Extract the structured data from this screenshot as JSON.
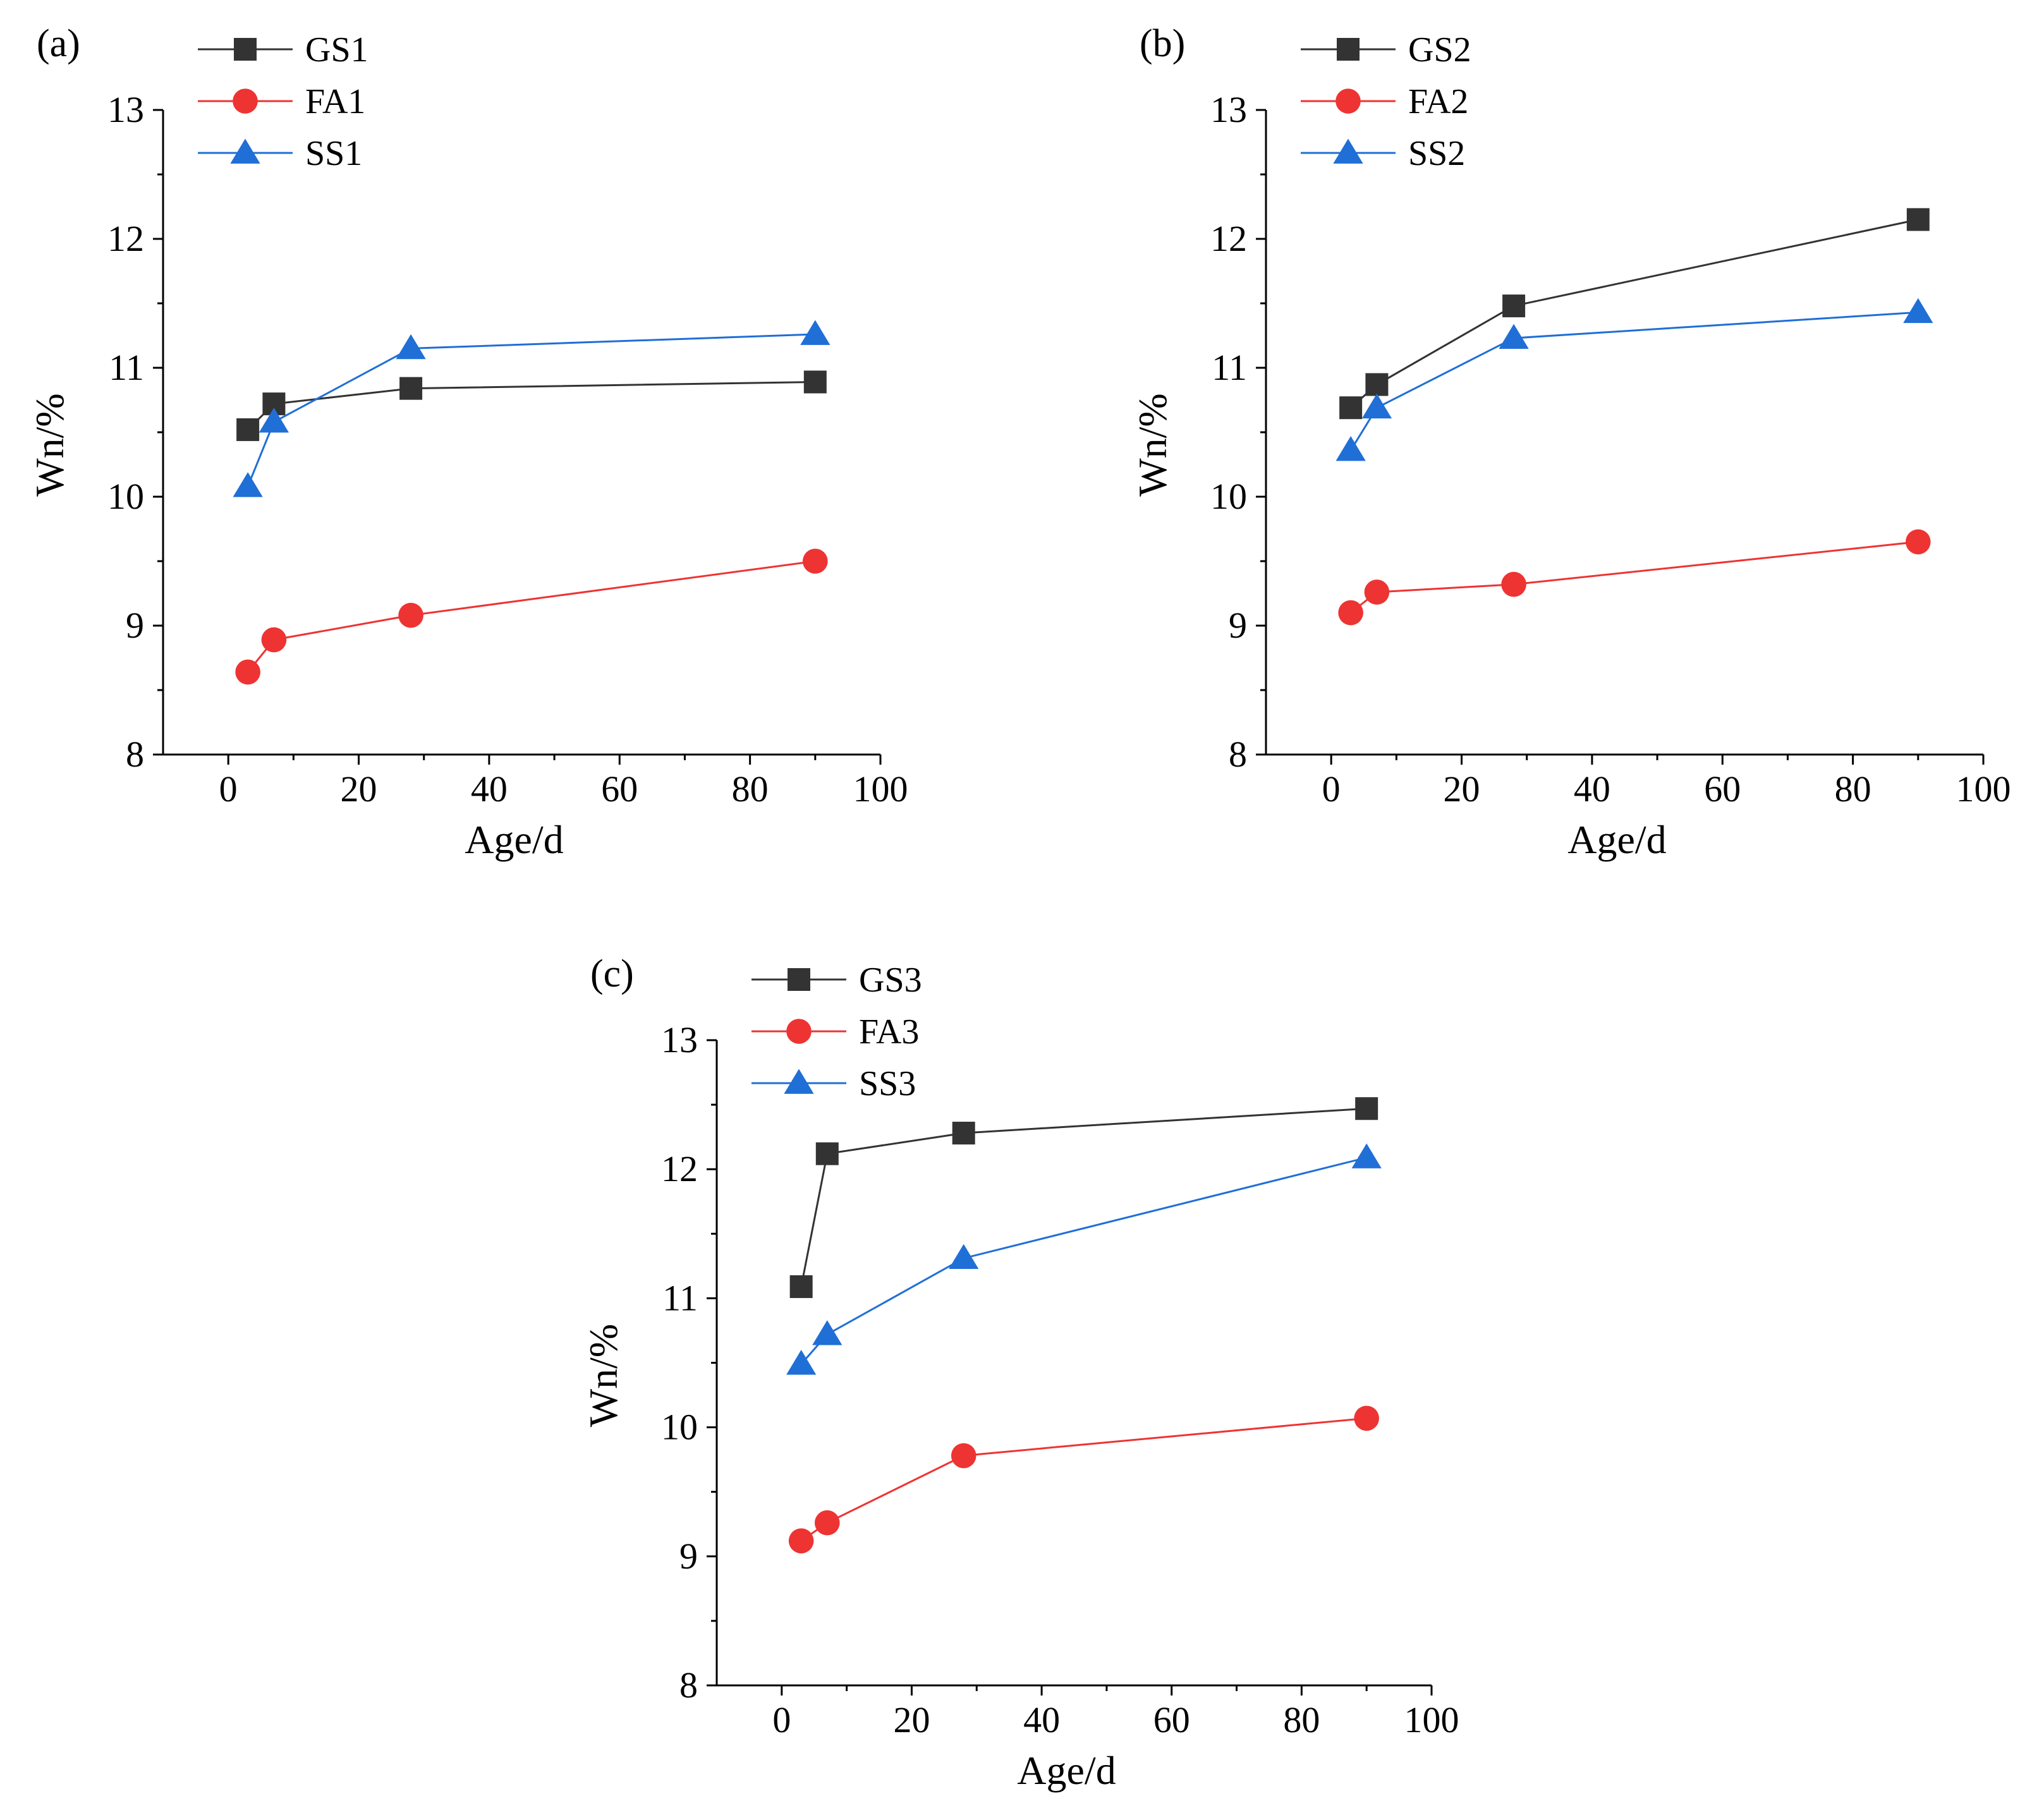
{
  "colors": {
    "GS": "#333333",
    "FA": "#ee3333",
    "SS": "#1f6fd6",
    "axis": "#000000"
  },
  "chart_data": [
    {
      "id": "a",
      "type": "line",
      "panel_label": "(a)",
      "xlabel": "Age/d",
      "ylabel": "Wn/%",
      "xlim": [
        -10,
        100
      ],
      "ylim": [
        8,
        13
      ],
      "xticks": [
        0,
        20,
        40,
        60,
        80,
        100
      ],
      "yticks": [
        8,
        9,
        10,
        11,
        12,
        13
      ],
      "legend_position": "top-left",
      "series": [
        {
          "name": "GS1",
          "marker": "square",
          "color_key": "GS",
          "x": [
            3,
            7,
            28,
            90
          ],
          "y": [
            10.52,
            10.72,
            10.84,
            10.89
          ]
        },
        {
          "name": "FA1",
          "marker": "circle",
          "color_key": "FA",
          "x": [
            3,
            7,
            28,
            90
          ],
          "y": [
            8.64,
            8.89,
            9.08,
            9.5
          ]
        },
        {
          "name": "SS1",
          "marker": "triangle",
          "color_key": "SS",
          "x": [
            3,
            7,
            28,
            90
          ],
          "y": [
            10.08,
            10.58,
            11.15,
            11.26
          ]
        }
      ]
    },
    {
      "id": "b",
      "type": "line",
      "panel_label": "(b)",
      "xlabel": "Age/d",
      "ylabel": "Wn/%",
      "xlim": [
        -10,
        100
      ],
      "ylim": [
        8,
        13
      ],
      "xticks": [
        0,
        20,
        40,
        60,
        80,
        100
      ],
      "yticks": [
        8,
        9,
        10,
        11,
        12,
        13
      ],
      "legend_position": "top-left",
      "series": [
        {
          "name": "GS2",
          "marker": "square",
          "color_key": "GS",
          "x": [
            3,
            7,
            28,
            90
          ],
          "y": [
            10.69,
            10.87,
            11.48,
            12.15
          ]
        },
        {
          "name": "FA2",
          "marker": "circle",
          "color_key": "FA",
          "x": [
            3,
            7,
            28,
            90
          ],
          "y": [
            9.1,
            9.26,
            9.32,
            9.65
          ]
        },
        {
          "name": "SS2",
          "marker": "triangle",
          "color_key": "SS",
          "x": [
            3,
            7,
            28,
            90
          ],
          "y": [
            10.36,
            10.69,
            11.23,
            11.43
          ]
        }
      ]
    },
    {
      "id": "c",
      "type": "line",
      "panel_label": "(c)",
      "xlabel": "Age/d",
      "ylabel": "Wn/%",
      "xlim": [
        -10,
        100
      ],
      "ylim": [
        8,
        13
      ],
      "xticks": [
        0,
        20,
        40,
        60,
        80,
        100
      ],
      "yticks": [
        8,
        9,
        10,
        11,
        12,
        13
      ],
      "legend_position": "top-left",
      "series": [
        {
          "name": "GS3",
          "marker": "square",
          "color_key": "GS",
          "x": [
            3,
            7,
            28,
            90
          ],
          "y": [
            11.09,
            12.12,
            12.28,
            12.47
          ]
        },
        {
          "name": "FA3",
          "marker": "circle",
          "color_key": "FA",
          "x": [
            3,
            7,
            28,
            90
          ],
          "y": [
            9.12,
            9.26,
            9.78,
            10.07
          ]
        },
        {
          "name": "SS3",
          "marker": "triangle",
          "color_key": "SS",
          "x": [
            3,
            7,
            28,
            90
          ],
          "y": [
            10.49,
            10.72,
            11.31,
            12.09
          ]
        }
      ]
    }
  ]
}
